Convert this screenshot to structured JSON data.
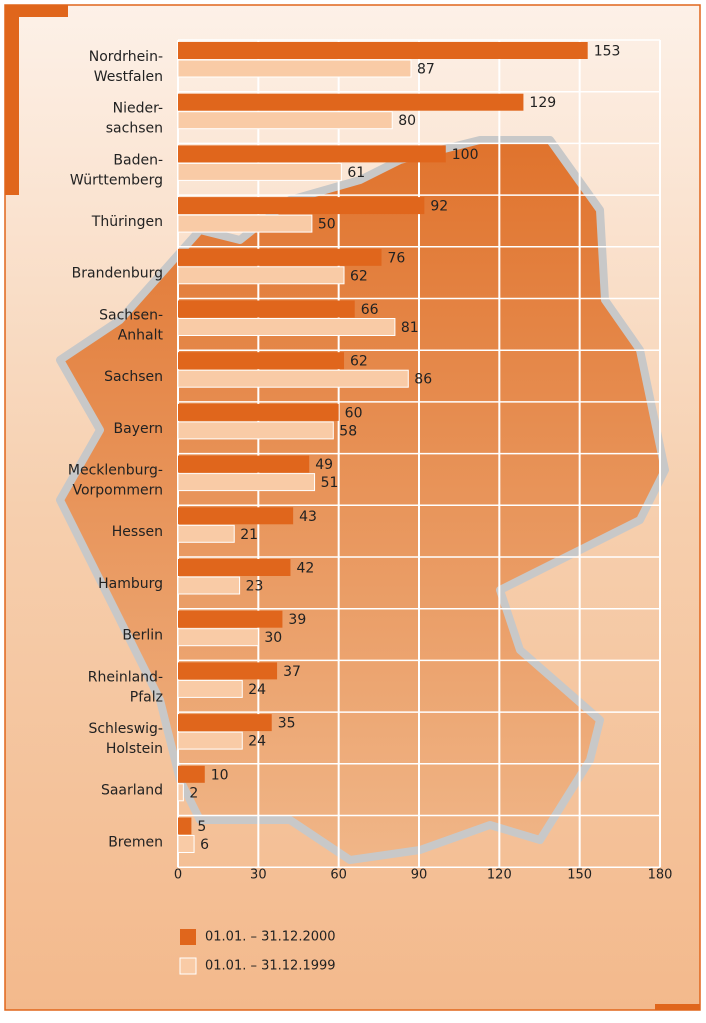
{
  "chart_data": {
    "type": "bar",
    "orientation": "horizontal",
    "categories": [
      [
        "Nordrhein-",
        "Westfalen"
      ],
      [
        "Nieder-",
        "sachsen"
      ],
      [
        "Baden-",
        "Württemberg"
      ],
      [
        "Thüringen"
      ],
      [
        "Brandenburg"
      ],
      [
        "Sachsen-",
        "Anhalt"
      ],
      [
        "Sachsen"
      ],
      [
        "Bayern"
      ],
      [
        "Mecklenburg-",
        "Vorpommern"
      ],
      [
        "Hessen"
      ],
      [
        "Hamburg"
      ],
      [
        "Berlin"
      ],
      [
        "Rheinland-",
        "Pfalz"
      ],
      [
        "Schleswig-",
        "Holstein"
      ],
      [
        "Saarland"
      ],
      [
        "Bremen"
      ]
    ],
    "series": [
      {
        "name": "01.01. – 31.12.2000",
        "color": "#e0661c",
        "values": [
          153,
          129,
          100,
          92,
          76,
          66,
          62,
          60,
          49,
          43,
          42,
          39,
          37,
          35,
          10,
          5
        ]
      },
      {
        "name": "01.01. – 31.12.1999",
        "color": "#f9cba6",
        "values": [
          87,
          80,
          61,
          50,
          62,
          81,
          86,
          58,
          51,
          21,
          23,
          30,
          24,
          24,
          2,
          6
        ]
      }
    ],
    "xlim": [
      0,
      180
    ],
    "xticks": [
      0,
      30,
      60,
      90,
      120,
      150,
      180
    ],
    "grid": true
  }
}
